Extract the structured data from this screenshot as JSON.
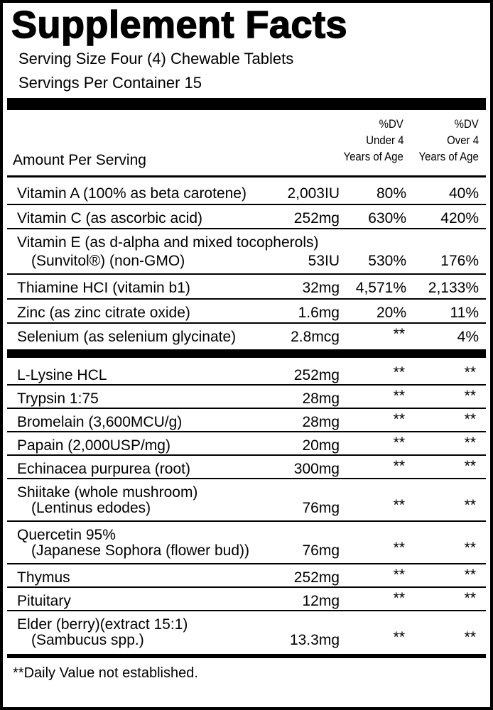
{
  "title": "Supplement Facts",
  "serving_size": "Serving Size Four (4) Chewable Tablets",
  "servings_per_container": "Servings Per Container 15",
  "header": {
    "amount_per_serving": "Amount Per Serving",
    "dv_under_4": [
      "%DV",
      "Under 4",
      "Years of Age"
    ],
    "dv_over_4": [
      "%DV",
      "Over 4",
      "Years of Age"
    ]
  },
  "sections": [
    {
      "rows": [
        {
          "name": "Vitamin A (100% as beta carotene)",
          "amount": "2,003IU",
          "dv_under_4": "80%",
          "dv_over_4": "40%"
        },
        {
          "name": "Vitamin C (as ascorbic acid)",
          "amount": "252mg",
          "dv_under_4": "630%",
          "dv_over_4": "420%"
        },
        {
          "name": "Vitamin E (as d-alpha and mixed tocopherols)",
          "detail": "(Sunvitol®) (non-GMO)",
          "amount": "53IU",
          "dv_under_4": "530%",
          "dv_over_4": "176%"
        },
        {
          "name": "Thiamine HCI (vitamin b1)",
          "amount": "32mg",
          "dv_under_4": "4,571%",
          "dv_over_4": "2,133%"
        },
        {
          "name": "Zinc (as zinc citrate oxide)",
          "amount": "1.6mg",
          "dv_under_4": "20%",
          "dv_over_4": "11%"
        },
        {
          "name": "Selenium (as selenium glycinate)",
          "amount": "2.8mcg",
          "dv_under_4": "**",
          "dv_over_4": "4%"
        }
      ]
    },
    {
      "rows": [
        {
          "name": "L-Lysine HCL",
          "amount": "252mg",
          "dv_under_4": "**",
          "dv_over_4": "**"
        },
        {
          "name": "Trypsin 1:75",
          "amount": "28mg",
          "dv_under_4": "**",
          "dv_over_4": "**"
        },
        {
          "name": "Bromelain (3,600MCU/g)",
          "amount": "28mg",
          "dv_under_4": "**",
          "dv_over_4": "**"
        },
        {
          "name": "Papain (2,000USP/mg)",
          "amount": "20mg",
          "dv_under_4": "**",
          "dv_over_4": "**"
        },
        {
          "name": "Echinacea purpurea (root)",
          "amount": "300mg",
          "dv_under_4": "**",
          "dv_over_4": "**"
        },
        {
          "name": "Shiitake (whole mushroom)",
          "detail": "(Lentinus edodes)",
          "amount": "76mg",
          "dv_under_4": "**",
          "dv_over_4": "**"
        },
        {
          "name": "Quercetin 95%",
          "detail": "(Japanese Sophora (flower bud))",
          "amount": "76mg",
          "dv_under_4": "**",
          "dv_over_4": "**"
        },
        {
          "name": "Thymus",
          "amount": "252mg",
          "dv_under_4": "**",
          "dv_over_4": "**"
        },
        {
          "name": "Pituitary",
          "amount": "12mg",
          "dv_under_4": "**",
          "dv_over_4": "**"
        },
        {
          "name": "Elder (berry)(extract 15:1)",
          "detail": "(Sambucus spp.)",
          "amount": "13.3mg",
          "dv_under_4": "**",
          "dv_over_4": "**"
        }
      ]
    }
  ],
  "footnote": "**Daily Value not established."
}
